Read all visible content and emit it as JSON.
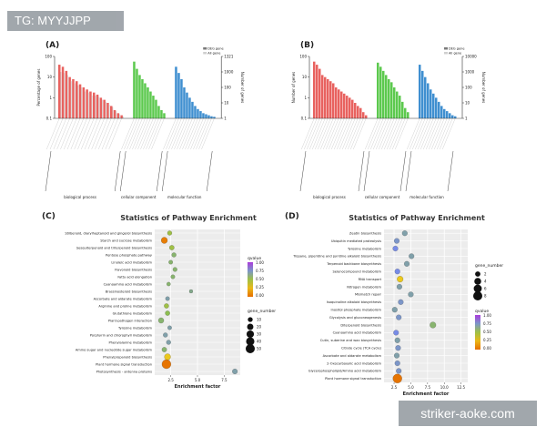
{
  "watermarks": {
    "top": "TG: MYYJJPP",
    "bottom": "striker-aoke.com"
  },
  "colors": {
    "bp": "#e8625f",
    "cc": "#5cc94e",
    "mf": "#3f8fd0",
    "bg": "#d9d9d9"
  },
  "chart_data": [
    {
      "panel": "(A)",
      "type": "bar",
      "ylabel_left": "Percentage of genes",
      "ylabel_right": "Number of genes",
      "yticks_left": [
        "100",
        "10",
        "1",
        "0.1"
      ],
      "yticks_right": [
        "1321",
        "1000",
        "100",
        "10",
        "1"
      ],
      "legend": [
        "DEG gene",
        "All gene"
      ],
      "groups": [
        {
          "name": "biological process",
          "color": "bp",
          "values": [
            52,
            50,
            46,
            40,
            38,
            36,
            33,
            30,
            28,
            26,
            25,
            23,
            20,
            18,
            15,
            12,
            8,
            5,
            3
          ]
        },
        {
          "name": "cellular component",
          "color": "cc",
          "values": [
            55,
            48,
            42,
            38,
            34,
            30,
            26,
            22,
            18,
            12,
            8,
            5
          ]
        },
        {
          "name": "molecular function",
          "color": "mf",
          "values": [
            50,
            44,
            38,
            30,
            25,
            20,
            16,
            12,
            9,
            7,
            5,
            4,
            3,
            2,
            1.5
          ]
        }
      ],
      "background_values": [
        45,
        44,
        42,
        36,
        34,
        32,
        30,
        26,
        25,
        22,
        22,
        21,
        18,
        16,
        13,
        11,
        7,
        4,
        2
      ]
    },
    {
      "panel": "(B)",
      "type": "bar",
      "ylabel_left": "Number of genes",
      "ylabel_right": "Number of genes",
      "yticks_left": [
        "100",
        "10",
        "1",
        "0.1"
      ],
      "yticks_right": [
        "10000",
        "1000",
        "100",
        "10",
        "1"
      ],
      "legend": [
        "DEG gene",
        "All gene"
      ],
      "groups": [
        {
          "name": "biological process",
          "color": "bp",
          "values": [
            55,
            52,
            48,
            42,
            40,
            38,
            36,
            34,
            30,
            28,
            26,
            24,
            22,
            20,
            18,
            15,
            12,
            10,
            6,
            3
          ]
        },
        {
          "name": "cellular component",
          "color": "cc",
          "values": [
            54,
            50,
            46,
            42,
            38,
            35,
            30,
            26,
            22,
            16,
            10,
            6
          ]
        },
        {
          "name": "molecular function",
          "color": "mf",
          "values": [
            52,
            46,
            40,
            34,
            28,
            24,
            20,
            16,
            12,
            9,
            7,
            5,
            3,
            2
          ]
        }
      ]
    },
    {
      "panel": "(C)",
      "type": "scatter",
      "title": "Statistics of Pathway Enrichment",
      "xlabel": "Enrichment factor",
      "xticks": [
        "2.5",
        "5.0",
        "7.5"
      ],
      "xlim": [
        1,
        9
      ],
      "categories": [
        "Stilbenoid, diarylheptanoid and gingerol biosynthesis",
        "Starch and sucrose metabolism",
        "Sesquiterpenoid and triterpenoid biosynthesis",
        "Pentose phosphate pathway",
        "Linoleic acid metabolism",
        "Flavonoid biosynthesis",
        "Fatty acid elongation",
        "Cyanoamino acid metabolism",
        "Brassinosteroid biosynthesis",
        "Ascorbate and aldarate metabolism",
        "Arginine and proline metabolism",
        "Glutathione metabolism",
        "Plant-pathogen interaction",
        "Tyrosine metabolism",
        "Porphyrin and chlorophyll metabolism",
        "Phenylalanine metabolism",
        "Amino sugar and nucleotide sugar metabolism",
        "Phenylpropanoid biosynthesis",
        "Plant hormone signal transduction",
        "Photosynthesis - antenna proteins"
      ],
      "x": [
        2.4,
        1.9,
        2.6,
        2.8,
        2.5,
        2.9,
        2.7,
        2.3,
        4.4,
        2.2,
        2.1,
        2.2,
        1.6,
        2.4,
        2.0,
        2.3,
        1.9,
        2.2,
        2.1,
        8.5
      ],
      "gene_number": [
        8,
        20,
        10,
        8,
        6,
        7,
        6,
        5,
        4,
        6,
        9,
        9,
        14,
        6,
        8,
        8,
        10,
        20,
        50,
        12
      ],
      "qvalue": [
        0.5,
        0.05,
        0.5,
        0.6,
        0.6,
        0.6,
        0.6,
        0.6,
        0.65,
        0.7,
        0.5,
        0.55,
        0.6,
        0.7,
        0.7,
        0.7,
        0.6,
        0.3,
        0.02,
        0.7
      ],
      "legend_qvalue": {
        "title": "qvalue",
        "ticks": [
          "1.00",
          "0.75",
          "0.50",
          "0.25",
          "0.00"
        ]
      },
      "legend_size": {
        "title": "gene_number",
        "values": [
          10,
          20,
          30,
          40,
          50
        ]
      }
    },
    {
      "panel": "(D)",
      "type": "scatter",
      "title": "Statistics of Pathway Enrichment",
      "xlabel": "Enrichment factor",
      "xticks": [
        "2.5",
        "5.0",
        "7.5",
        "10.0",
        "12.5"
      ],
      "xlim": [
        1,
        13.5
      ],
      "categories": [
        "Zeatin biosynthesis",
        "Ubiquitin mediated proteolysis",
        "Tyrosine metabolism",
        "Tropane, piperidine and pyridine alkaloid biosynthesis",
        "Terpenoid backbone biosynthesis",
        "Selenocompound metabolism",
        "RNA transport",
        "Nitrogen metabolism",
        "Mismatch repair",
        "Isoquinoline alkaloid biosynthesis",
        "Inositol phosphate metabolism",
        "Glycolysis and gluconeogenesis",
        "Diterpenoid biosynthesis",
        "Cyanoamino acid metabolism",
        "Cutin, suberine and wax biosynthesis",
        "Citrate cycle (TCA cycle)",
        "Ascorbate and aldarate metabolism",
        "2-Oxocarboxylic acid metabolism",
        "Glycerophospholipid/Amino acid metabolism",
        "Plant hormone signal transduction"
      ],
      "x": [
        4.1,
        2.9,
        2.7,
        5.1,
        4.4,
        3.0,
        3.4,
        3.3,
        5.0,
        3.5,
        2.6,
        3.2,
        8.3,
        2.8,
        3.0,
        3.1,
        2.9,
        3.0,
        3.2,
        3.0
      ],
      "gene_number": [
        2,
        2,
        2,
        2,
        2,
        2,
        3,
        2,
        2,
        2,
        2,
        2,
        3,
        2,
        2,
        2,
        2,
        2,
        2,
        8
      ],
      "qvalue": [
        0.7,
        0.75,
        0.8,
        0.7,
        0.7,
        0.8,
        0.3,
        0.7,
        0.7,
        0.75,
        0.7,
        0.75,
        0.6,
        0.8,
        0.7,
        0.75,
        0.7,
        0.75,
        0.75,
        0.02
      ],
      "legend_qvalue": {
        "title": "qvalue",
        "ticks": [
          "1.00",
          "0.75",
          "0.50",
          "0.25",
          "0.00"
        ]
      },
      "legend_size": {
        "title": "gene_number",
        "values": [
          2,
          4,
          6,
          8
        ]
      }
    }
  ]
}
